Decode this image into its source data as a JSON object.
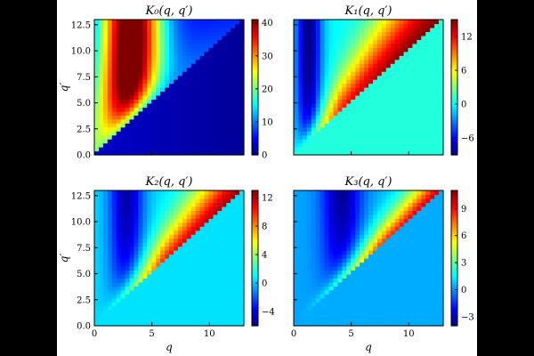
{
  "chart_data": [
    {
      "type": "heatmap",
      "title": "K₀(q, q′)",
      "xlabel": "",
      "ylabel": "q′",
      "xlim": [
        0,
        13
      ],
      "ylim": [
        0,
        13
      ],
      "xticks": [],
      "yticks": [
        "0.0",
        "2.5",
        "5.0",
        "7.5",
        "10.0",
        "12.5"
      ],
      "colorbar": {
        "min": 0,
        "max": 41,
        "ticks": [
          "0",
          "10",
          "20",
          "30",
          "40"
        ]
      }
    },
    {
      "type": "heatmap",
      "title": "K₁(q, q′)",
      "xlabel": "",
      "ylabel": "",
      "xlim": [
        0,
        13
      ],
      "ylim": [
        0,
        13
      ],
      "xticks": [],
      "yticks": [],
      "colorbar": {
        "min": -9,
        "max": 15,
        "ticks": [
          "−6",
          "0",
          "6",
          "12"
        ]
      }
    },
    {
      "type": "heatmap",
      "title": "K₂(q, q′)",
      "xlabel": "q",
      "ylabel": "q′",
      "xlim": [
        0,
        13
      ],
      "ylim": [
        0,
        13
      ],
      "xticks": [
        "0",
        "5",
        "10"
      ],
      "yticks": [
        "0.0",
        "2.5",
        "5.0",
        "7.5",
        "10.0",
        "12.5"
      ],
      "colorbar": {
        "min": -6,
        "max": 13,
        "ticks": [
          "−4",
          "0",
          "4",
          "8",
          "12"
        ]
      }
    },
    {
      "type": "heatmap",
      "title": "K₃(q, q′)",
      "xlabel": "q",
      "ylabel": "",
      "xlim": [
        0,
        13
      ],
      "ylim": [
        0,
        13
      ],
      "xticks": [
        "0",
        "5",
        "10"
      ],
      "yticks": [],
      "colorbar": {
        "min": -4,
        "max": 11,
        "ticks": [
          "−3",
          "0",
          "3",
          "6",
          "9"
        ]
      }
    }
  ]
}
